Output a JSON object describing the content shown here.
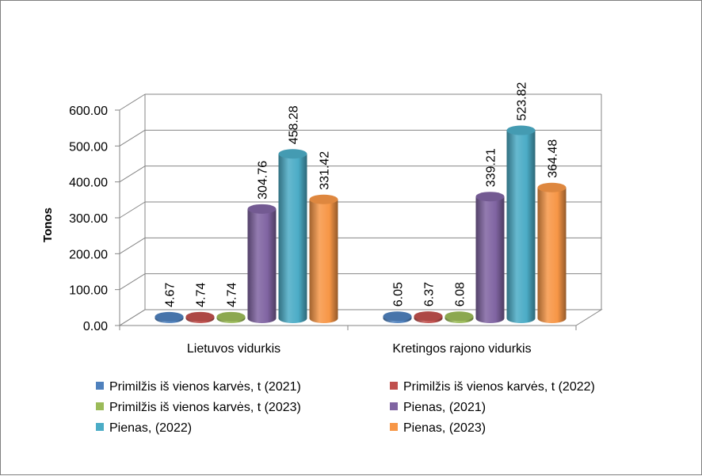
{
  "chart_data": {
    "type": "bar",
    "title": "",
    "xlabel": "",
    "ylabel": "Tonos",
    "ylim": [
      0,
      600
    ],
    "yticks": [
      0,
      100,
      200,
      300,
      400,
      500,
      600
    ],
    "ytick_labels": [
      "0.00",
      "100.00",
      "200.00",
      "300.00",
      "400.00",
      "500.00",
      "600.00"
    ],
    "categories": [
      "Lietuvos vidurkis",
      "Kretingos rajono vidurkis"
    ],
    "grid": true,
    "legend": "bottom",
    "series": [
      {
        "name": "Primilžis iš vienos karvės, t (2021)",
        "values": [
          4.67,
          6.05
        ],
        "labels": [
          "4.67",
          "6.05"
        ],
        "color": "#4F81BD"
      },
      {
        "name": "Primilžis iš vienos karvės, t (2022)",
        "values": [
          4.74,
          6.37
        ],
        "labels": [
          "4.74",
          "6.37"
        ],
        "color": "#C0504D"
      },
      {
        "name": "Primilžis iš vienos karvės, t (2023)",
        "values": [
          4.74,
          6.08
        ],
        "labels": [
          "4.74",
          "6.08"
        ],
        "color": "#9BBB59"
      },
      {
        "name": "Pienas,  (2021)",
        "values": [
          304.76,
          339.21
        ],
        "labels": [
          "304.76",
          "339.21"
        ],
        "color": "#8064A2"
      },
      {
        "name": "Pienas,  (2022)",
        "values": [
          458.28,
          523.82
        ],
        "labels": [
          "458.28",
          "523.82"
        ],
        "color": "#4BACC6"
      },
      {
        "name": "Pienas,  (2023)",
        "values": [
          331.42,
          364.48
        ],
        "labels": [
          "331.42",
          "364.48"
        ],
        "color": "#F79646"
      }
    ]
  }
}
